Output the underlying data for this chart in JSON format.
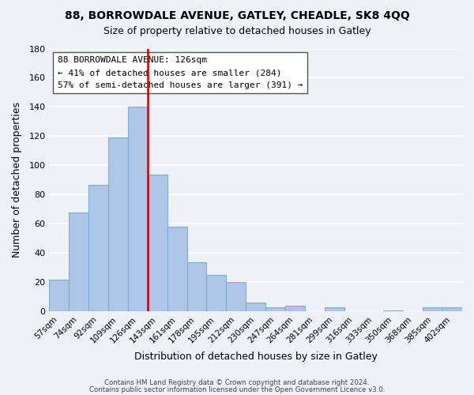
{
  "title": "88, BORROWDALE AVENUE, GATLEY, CHEADLE, SK8 4QQ",
  "subtitle": "Size of property relative to detached houses in Gatley",
  "xlabel": "Distribution of detached houses by size in Gatley",
  "ylabel": "Number of detached properties",
  "bar_labels": [
    "57sqm",
    "74sqm",
    "92sqm",
    "109sqm",
    "126sqm",
    "143sqm",
    "161sqm",
    "178sqm",
    "195sqm",
    "212sqm",
    "230sqm",
    "247sqm",
    "264sqm",
    "281sqm",
    "299sqm",
    "316sqm",
    "333sqm",
    "350sqm",
    "368sqm",
    "385sqm",
    "402sqm"
  ],
  "bar_values": [
    22,
    68,
    87,
    119,
    140,
    94,
    58,
    34,
    25,
    20,
    6,
    3,
    4,
    0,
    3,
    0,
    0,
    1,
    0,
    3,
    3
  ],
  "bar_color": "#aec6e8",
  "bar_edge_color": "#7bafd4",
  "vline_x": 4.5,
  "vline_color": "#cc0000",
  "ylim": [
    0,
    180
  ],
  "yticks": [
    0,
    20,
    40,
    60,
    80,
    100,
    120,
    140,
    160,
    180
  ],
  "annotation_title": "88 BORROWDALE AVENUE: 126sqm",
  "annotation_line1": "← 41% of detached houses are smaller (284)",
  "annotation_line2": "57% of semi-detached houses are larger (391) →",
  "footer1": "Contains HM Land Registry data © Crown copyright and database right 2024.",
  "footer2": "Contains public sector information licensed under the Open Government Licence v3.0.",
  "background_color": "#eef2f8",
  "grid_color": "#ffffff"
}
